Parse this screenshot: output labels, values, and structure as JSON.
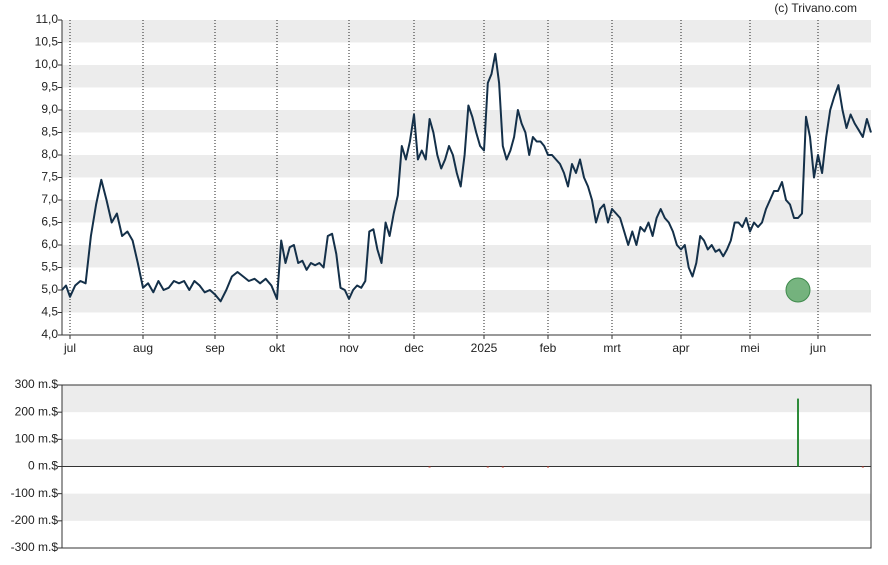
{
  "chart_data": [
    {
      "type": "line",
      "credit": "(c) Trivano.com",
      "series": [
        {
          "color": "#143049",
          "values": [
            5.0,
            5.1,
            4.85,
            5.1,
            5.2,
            5.15,
            6.2,
            6.9,
            7.45,
            7.0,
            6.5,
            6.7,
            6.2,
            6.3,
            6.1,
            5.6,
            5.05,
            5.15,
            4.95,
            5.2,
            5.0,
            5.05,
            5.2,
            5.15,
            5.2,
            5.0,
            5.2,
            5.1,
            4.95,
            5.0,
            4.9,
            4.75,
            5.0,
            5.3,
            5.4,
            5.3,
            5.2,
            5.25,
            5.15,
            5.25,
            5.1,
            4.8,
            6.1,
            5.6,
            5.95,
            6.0,
            5.6,
            5.65,
            5.45,
            5.6,
            5.55,
            5.6,
            5.5,
            6.2,
            6.25,
            5.8,
            5.05,
            5.0,
            4.8,
            5.0,
            5.1,
            5.05,
            5.2,
            6.3,
            6.35,
            5.9,
            5.6,
            6.5,
            6.2,
            6.7,
            7.1,
            8.2,
            7.9,
            8.3,
            8.9,
            7.9,
            8.1,
            7.9,
            8.8,
            8.5,
            8.0,
            7.7,
            7.9,
            8.2,
            8.0,
            7.6,
            7.3,
            8.0,
            9.1,
            8.85,
            8.5,
            8.2,
            8.1,
            9.6,
            9.8,
            10.25,
            9.6,
            8.2,
            7.9,
            8.1,
            8.4,
            9.0,
            8.7,
            8.5,
            8.0,
            8.4,
            8.3,
            8.3,
            8.2,
            8.0,
            8.0,
            7.9,
            7.8,
            7.6,
            7.3,
            7.8,
            7.6,
            7.9,
            7.5,
            7.3,
            7.0,
            6.5,
            6.8,
            6.9,
            6.5,
            6.8,
            6.7,
            6.6,
            6.3,
            6.0,
            6.3,
            6.0,
            6.4,
            6.3,
            6.5,
            6.2,
            6.6,
            6.8,
            6.6,
            6.5,
            6.3,
            6.0,
            5.9,
            6.0,
            5.5,
            5.3,
            5.6,
            6.2,
            6.1,
            5.9,
            6.0,
            5.85,
            5.9,
            5.75,
            5.9,
            6.1,
            6.5,
            6.5,
            6.4,
            6.6,
            6.3,
            6.5,
            6.4,
            6.5,
            6.8,
            7.0,
            7.2,
            7.2,
            7.4,
            7.0,
            6.9,
            6.6,
            6.6,
            6.7,
            8.85,
            8.4,
            7.5,
            8.0,
            7.6,
            8.4,
            9.0,
            9.3,
            9.55,
            9.0,
            8.6,
            8.9,
            8.7,
            8.55,
            8.4,
            8.8,
            8.5
          ]
        }
      ],
      "xlim": [
        0,
        190
      ],
      "xticks": [
        {
          "value": 2,
          "label": "jul"
        },
        {
          "value": 16,
          "label": "aug"
        },
        {
          "value": 30,
          "label": "sep"
        },
        {
          "value": 41,
          "label": "okt"
        },
        {
          "value": 58,
          "label": "nov"
        },
        {
          "value": 74,
          "label": "dec"
        },
        {
          "value": 92,
          "label": "2025"
        },
        {
          "value": 109,
          "label": "feb"
        },
        {
          "value": 125,
          "label": "mrt"
        },
        {
          "value": 142,
          "label": "apr"
        },
        {
          "value": 160,
          "label": "mei"
        },
        {
          "value": 177,
          "label": "jun"
        }
      ],
      "ylim": [
        4,
        11
      ],
      "yticks": [
        {
          "value": 4,
          "label": "4,0"
        },
        {
          "value": 4.5,
          "label": "4,5"
        },
        {
          "value": 5,
          "label": "5,0"
        },
        {
          "value": 5.5,
          "label": "5,5"
        },
        {
          "value": 6,
          "label": "6,0"
        },
        {
          "value": 6.5,
          "label": "6,5"
        },
        {
          "value": 7,
          "label": "7,0"
        },
        {
          "value": 7.5,
          "label": "7,5"
        },
        {
          "value": 8,
          "label": "8,0"
        },
        {
          "value": 8.5,
          "label": "8,5"
        },
        {
          "value": 9,
          "label": "9,0"
        },
        {
          "value": 9.5,
          "label": "9,5"
        },
        {
          "value": 10,
          "label": "10,0"
        },
        {
          "value": 10.5,
          "label": "10,5"
        },
        {
          "value": 11,
          "label": "11,0"
        }
      ],
      "grid": true,
      "markers": [
        {
          "x": 172,
          "y": 5.0,
          "color": "#5fa86a"
        }
      ]
    },
    {
      "type": "bar",
      "x": [
        78,
        93,
        97,
        109,
        172,
        188
      ],
      "values": [
        -2,
        -2,
        -2,
        -2,
        250,
        -2
      ],
      "positive_color": "#2e8b3a",
      "negative_color": "#c0392b",
      "xlim": [
        0,
        190
      ],
      "ylim": [
        -300,
        300
      ],
      "yticks": [
        {
          "value": 300,
          "label": "300 m.$"
        },
        {
          "value": 200,
          "label": "200 m.$"
        },
        {
          "value": 100,
          "label": "100 m.$"
        },
        {
          "value": 0,
          "label": "0 m.$"
        },
        {
          "value": -100,
          "label": "-100 m.$"
        },
        {
          "value": -200,
          "label": "-200 m.$"
        },
        {
          "value": -300,
          "label": "-300 m.$"
        }
      ],
      "grid": true
    }
  ]
}
